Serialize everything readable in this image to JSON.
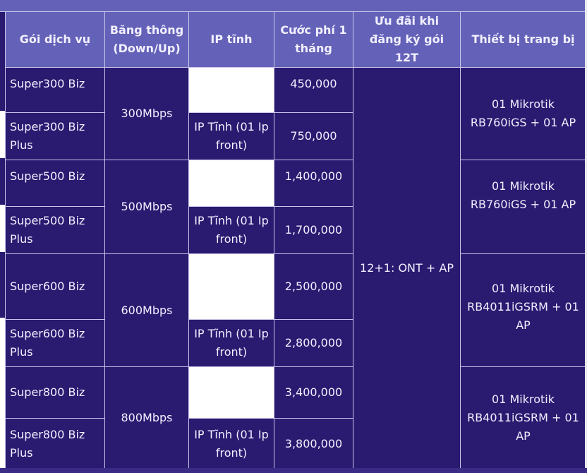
{
  "header": {
    "package": "Gói dịch vụ",
    "bandwidth": "Băng thông (Down/Up)",
    "static_ip": "IP tĩnh",
    "monthly_fee": "Cước phí 1 tháng",
    "promo": "Ưu đãi khi đăng ký gói 12T",
    "equipment": "Thiết bị trang bị"
  },
  "rows": [
    {
      "name": "Super300 Biz",
      "ip": "",
      "fee": "450,000"
    },
    {
      "name": "Super300 Biz Plus",
      "ip": "IP Tĩnh (01 Ip front)",
      "fee": "750,000"
    },
    {
      "name": "Super500 Biz",
      "ip": "",
      "fee": "1,400,000"
    },
    {
      "name": "Super500 Biz Plus",
      "ip": "IP Tĩnh (01 Ip front)",
      "fee": "1,700,000"
    },
    {
      "name": "Super600 Biz",
      "ip": "",
      "fee": "2,500,000"
    },
    {
      "name": "Super600 Biz Plus",
      "ip": "IP Tĩnh (01 Ip front)",
      "fee": "2,800,000"
    },
    {
      "name": "Super800 Biz",
      "ip": "",
      "fee": "3,400,000"
    },
    {
      "name": "Super800 Biz Plus",
      "ip": "IP Tĩnh (01 Ip front)",
      "fee": "3,800,000"
    }
  ],
  "groups": [
    {
      "bandwidth": "300Mbps",
      "equipment": "01 Mikrotik RB760iGS + 01 AP"
    },
    {
      "bandwidth": "500Mbps",
      "equipment": "01 Mikrotik RB760iGS + 01 AP"
    },
    {
      "bandwidth": "600Mbps",
      "equipment": "01 Mikrotik RB4011iGSRM + 01 AP"
    },
    {
      "bandwidth": "800Mbps",
      "equipment": "01 Mikrotik RB4011iGSRM + 01 AP"
    }
  ],
  "promo_value": "12+1: ONT + AP",
  "colors": {
    "header": "#6462b8",
    "body": "#2a1a70",
    "border": "#c9c6ea"
  }
}
